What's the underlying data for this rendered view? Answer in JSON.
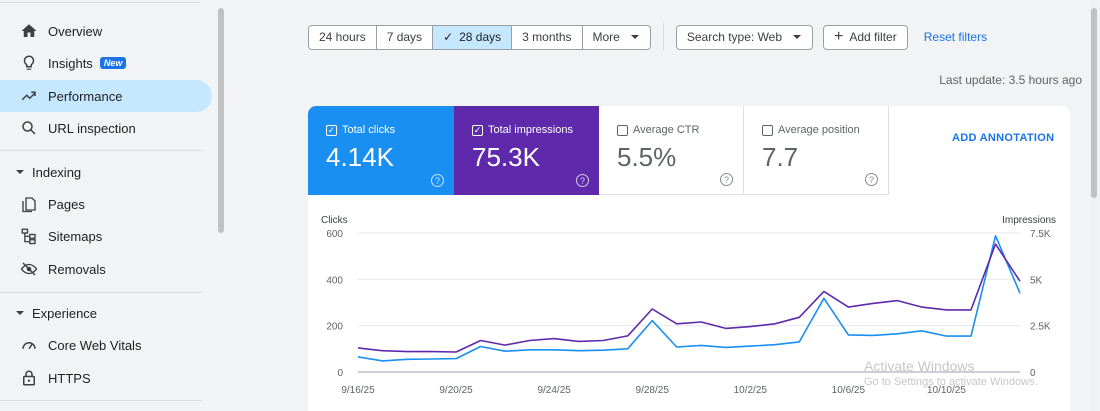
{
  "sidebar": {
    "items": [
      {
        "label": "Overview",
        "icon": "home-icon"
      },
      {
        "label": "Insights",
        "icon": "lightbulb-icon",
        "badge": "New"
      },
      {
        "label": "Performance",
        "icon": "trending-icon",
        "active": true
      },
      {
        "label": "URL inspection",
        "icon": "search-icon"
      }
    ],
    "sections": [
      {
        "title": "Indexing",
        "items": [
          {
            "label": "Pages",
            "icon": "pages-icon"
          },
          {
            "label": "Sitemaps",
            "icon": "sitemap-icon"
          },
          {
            "label": "Removals",
            "icon": "eye-off-icon"
          }
        ]
      },
      {
        "title": "Experience",
        "items": [
          {
            "label": "Core Web Vitals",
            "icon": "gauge-icon"
          },
          {
            "label": "HTTPS",
            "icon": "lock-icon"
          }
        ]
      }
    ]
  },
  "toolbar": {
    "ranges": [
      "24 hours",
      "7 days",
      "28 days",
      "3 months"
    ],
    "selected_range": "28 days",
    "more_label": "More",
    "search_type_label": "Search type: Web",
    "add_filter_label": "Add filter",
    "reset_filters_label": "Reset filters"
  },
  "last_update": "Last update: 3.5 hours ago",
  "metrics": {
    "clicks": {
      "label": "Total clicks",
      "value": "4.14K",
      "checked": true,
      "color": "#1a8ff2"
    },
    "impressions": {
      "label": "Total impressions",
      "value": "75.3K",
      "checked": true,
      "color": "#5e2aab"
    },
    "ctr": {
      "label": "Average CTR",
      "value": "5.5%",
      "checked": false
    },
    "position": {
      "label": "Average position",
      "value": "7.7",
      "checked": false
    }
  },
  "add_annotation_label": "ADD ANNOTATION",
  "chart_data": {
    "type": "line",
    "y_left_label": "Clicks",
    "y_right_label": "Impressions",
    "y_left_ticks": [
      "600",
      "400",
      "200",
      "0"
    ],
    "y_right_ticks": [
      "7.5K",
      "5K",
      "2.5K",
      "0"
    ],
    "y_left_range": [
      0,
      600
    ],
    "y_right_range": [
      0,
      7500
    ],
    "x_tick_labels": [
      "9/16/25",
      "9/20/25",
      "9/24/25",
      "9/28/25",
      "10/2/25",
      "10/6/25",
      "10/10/25"
    ],
    "x_tick_indices": [
      0,
      4,
      8,
      12,
      16,
      20,
      24
    ],
    "series": [
      {
        "name": "Clicks",
        "axis": "left",
        "color": "#1a8ff2",
        "values": [
          65,
          48,
          55,
          56,
          58,
          110,
          90,
          96,
          96,
          92,
          94,
          100,
          222,
          108,
          115,
          106,
          112,
          118,
          130,
          318,
          160,
          158,
          165,
          178,
          155,
          155,
          588,
          340
        ]
      },
      {
        "name": "Impressions",
        "axis": "right",
        "color": "#5e2aab",
        "values": [
          1300,
          1150,
          1100,
          1100,
          1080,
          1700,
          1450,
          1700,
          1800,
          1650,
          1700,
          1950,
          3400,
          2600,
          2700,
          2350,
          2450,
          2600,
          2950,
          4350,
          3500,
          3700,
          3850,
          3500,
          3350,
          3350,
          6900,
          4900
        ]
      }
    ],
    "grid": true
  },
  "watermark": {
    "line1": "Activate Windows",
    "line2": "Go to Settings to activate Windows."
  }
}
